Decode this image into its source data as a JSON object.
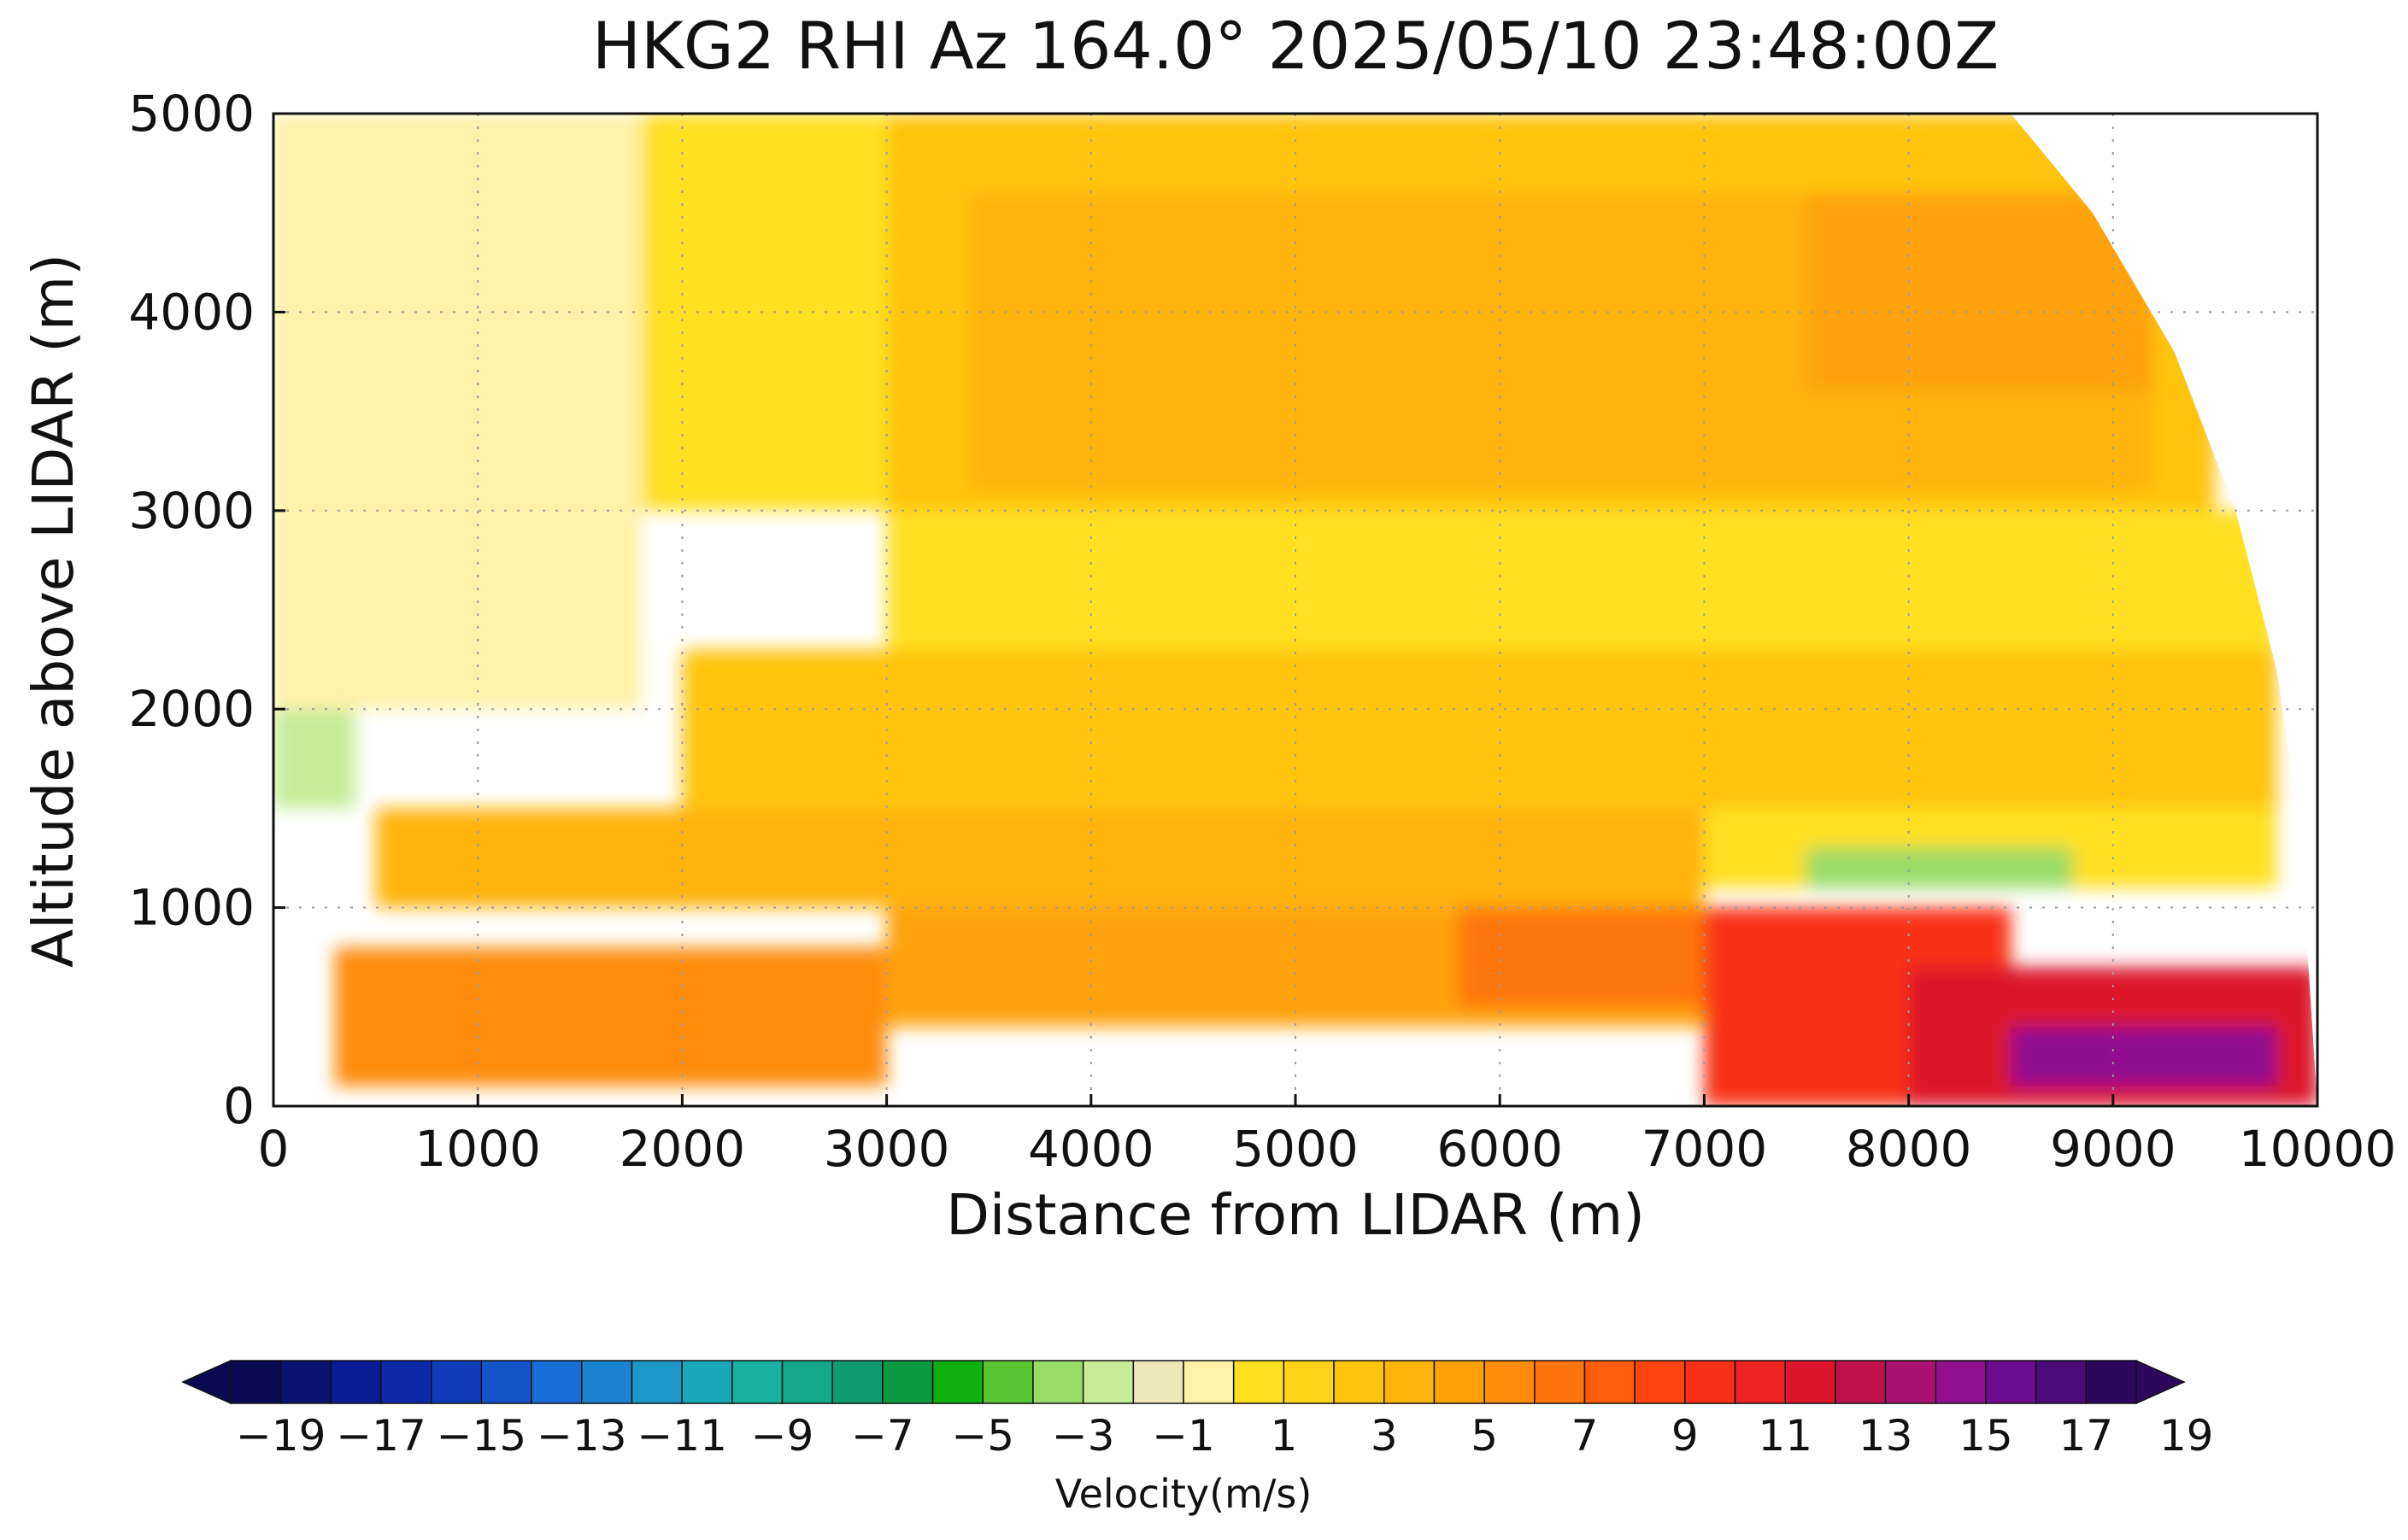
{
  "chart_data": {
    "type": "heatmap",
    "title": "HKG2 RHI Az 164.0° 2025/05/10 23:48:00Z",
    "xlabel": "Distance from LIDAR (m)",
    "ylabel": "Altitude above LIDAR (m)",
    "xlim": [
      0,
      10000
    ],
    "ylim": [
      0,
      5000
    ],
    "x_ticks": [
      0,
      1000,
      2000,
      3000,
      4000,
      5000,
      6000,
      7000,
      8000,
      9000,
      10000
    ],
    "y_ticks": [
      0,
      1000,
      2000,
      3000,
      4000,
      5000
    ],
    "x_tick_labels": [
      "0",
      "1000",
      "2000",
      "3000",
      "4000",
      "5000",
      "6000",
      "7000",
      "8000",
      "9000",
      "10000"
    ],
    "y_tick_labels": [
      "0",
      "1000",
      "2000",
      "3000",
      "4000",
      "5000"
    ],
    "grid": true,
    "grid_style": "dotted",
    "colorbar": {
      "label": "Velocity(m/s)",
      "levels": [
        -19,
        -18,
        -17,
        -16,
        -15,
        -14,
        -13,
        -12,
        -11,
        -10,
        -9,
        -8,
        -7,
        -6,
        -5,
        -4,
        -3,
        -2,
        -1,
        0,
        1,
        2,
        3,
        4,
        5,
        6,
        7,
        8,
        9,
        10,
        11,
        12,
        13,
        14,
        15,
        16,
        17,
        18,
        19
      ],
      "tick_labels": [
        "−19",
        "−17",
        "−15",
        "−13",
        "−11",
        "−9",
        "−7",
        "−5",
        "−3",
        "−1",
        "1",
        "3",
        "5",
        "7",
        "9",
        "11",
        "13",
        "15",
        "17",
        "19"
      ],
      "colors": [
        "#0a0a50",
        "#0a1272",
        "#0a1c94",
        "#0c2aa8",
        "#0f3cb8",
        "#1355c8",
        "#176ed5",
        "#1a84d2",
        "#1b98c8",
        "#1aa8b8",
        "#18b0a0",
        "#14a888",
        "#109a70",
        "#0c9a40",
        "#10b010",
        "#58c530",
        "#98dc68",
        "#c6ec9a",
        "#ece6b8",
        "#fff2a8",
        "#ffe022",
        "#ffd418",
        "#ffc40c",
        "#ffb40a",
        "#ffa20a",
        "#ff8c0a",
        "#ff740a",
        "#ff5c0c",
        "#ff4410",
        "#f83018",
        "#ee2222",
        "#dc142c",
        "#c0104c",
        "#aa1070",
        "#901090",
        "#6c0c90",
        "#4a0a78",
        "#2c085c"
      ],
      "extend": "both"
    },
    "radial_velocity_bins": [
      {
        "range_m": [
          0,
          400
        ],
        "altitude_m": [
          1500,
          5000
        ],
        "velocity": -2
      },
      {
        "range_m": [
          0,
          1800
        ],
        "altitude_m": [
          2000,
          5000
        ],
        "velocity": 0
      },
      {
        "range_m": [
          1800,
          3000
        ],
        "altitude_m": [
          3000,
          5000
        ],
        "velocity": 1
      },
      {
        "range_m": [
          3000,
          9500
        ],
        "altitude_m": [
          3000,
          5000
        ],
        "velocity": 3
      },
      {
        "range_m": [
          3400,
          9200
        ],
        "altitude_m": [
          3100,
          4600
        ],
        "velocity": 4
      },
      {
        "range_m": [
          7500,
          9200
        ],
        "altitude_m": [
          3600,
          4600
        ],
        "velocity": 5
      },
      {
        "range_m": [
          3000,
          9800
        ],
        "altitude_m": [
          2300,
          3000
        ],
        "velocity": 1
      },
      {
        "range_m": [
          2000,
          9800
        ],
        "altitude_m": [
          1500,
          2300
        ],
        "velocity": 3
      },
      {
        "range_m": [
          7000,
          9800
        ],
        "altitude_m": [
          1100,
          1500
        ],
        "velocity": 1
      },
      {
        "range_m": [
          7500,
          8800
        ],
        "altitude_m": [
          1100,
          1300
        ],
        "velocity": -3
      },
      {
        "range_m": [
          500,
          7000
        ],
        "altitude_m": [
          1000,
          1500
        ],
        "velocity": 4
      },
      {
        "range_m": [
          300,
          3000
        ],
        "altitude_m": [
          100,
          800
        ],
        "velocity": 6
      },
      {
        "range_m": [
          3000,
          7000
        ],
        "altitude_m": [
          400,
          1000
        ],
        "velocity": 5
      },
      {
        "range_m": [
          5800,
          7400
        ],
        "altitude_m": [
          500,
          1000
        ],
        "velocity": 7
      },
      {
        "range_m": [
          7000,
          8500
        ],
        "altitude_m": [
          0,
          1000
        ],
        "velocity": 10
      },
      {
        "range_m": [
          8000,
          10000
        ],
        "altitude_m": [
          0,
          700
        ],
        "velocity": 12
      },
      {
        "range_m": [
          8500,
          9800
        ],
        "altitude_m": [
          100,
          400
        ],
        "velocity": 15
      }
    ]
  }
}
